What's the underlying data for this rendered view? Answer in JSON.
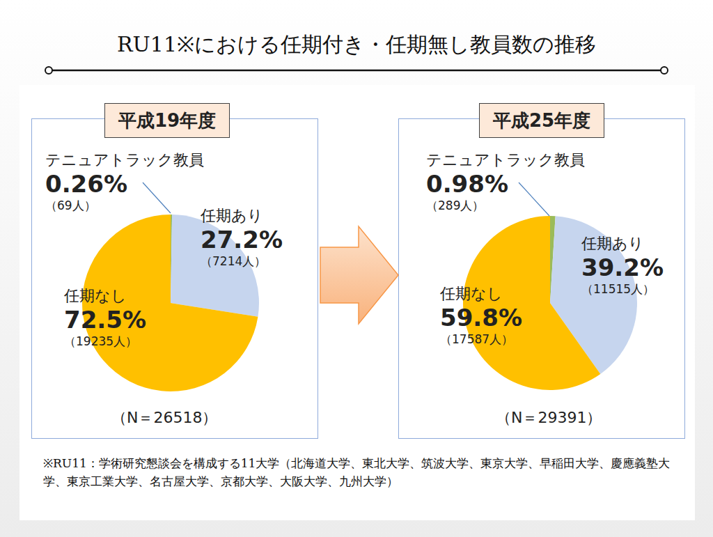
{
  "title": "RU11※における任期付き・任期無し教員数の推移",
  "footnote": "※RU11：学術研究懇談会を構成する11大学（北海道大学、東北大学、筑波大学、東京大学、早稲田大学、慶應義塾大学、東京工業大学、名古屋大学、京都大学、大阪大学、九州大学）",
  "chart_data": [
    {
      "type": "pie",
      "title": "平成19年度",
      "categories": [
        "テニュアトラック教員",
        "任期あり",
        "任期なし"
      ],
      "values": [
        0.26,
        27.2,
        72.5
      ],
      "value_labels": [
        "0.26%",
        "27.2%",
        "72.5%"
      ],
      "count_labels": [
        "（69人）",
        "（7214人）",
        "（19235人）"
      ],
      "colors": [
        "#9bbb59",
        "#c6d5ee",
        "#ffc000"
      ],
      "note": "（N＝26518）"
    },
    {
      "type": "pie",
      "title": "平成25年度",
      "categories": [
        "テニュアトラック教員",
        "任期あり",
        "任期なし"
      ],
      "values": [
        0.98,
        39.2,
        59.8
      ],
      "value_labels": [
        "0.98%",
        "39.2%",
        "59.8%"
      ],
      "count_labels": [
        "（289人）",
        "（11515人）",
        "（17587人）"
      ],
      "colors": [
        "#9bbb59",
        "#c6d5ee",
        "#ffc000"
      ],
      "note": "（N＝29391）"
    }
  ]
}
